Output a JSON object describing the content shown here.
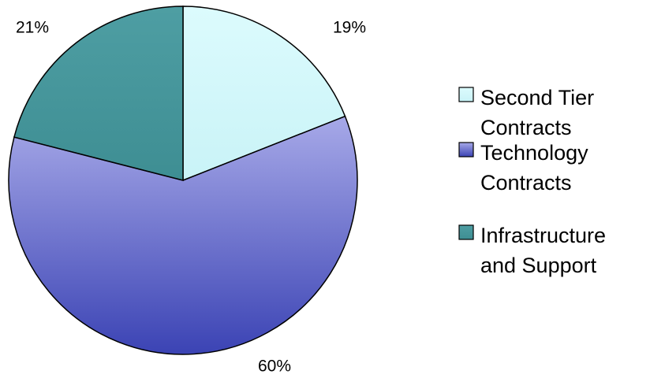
{
  "chart_data": {
    "type": "pie",
    "title": "",
    "slices": [
      {
        "label_lines": [
          "Second Tier",
          "Contracts"
        ],
        "value": 19,
        "label": "19%",
        "color_top": "#DCFBFD",
        "color_bottom": "#C9F3F7"
      },
      {
        "label_lines": [
          "Technology",
          "Contracts"
        ],
        "value": 60,
        "label": "60%",
        "color_top": "#A7A9E8",
        "color_bottom": "#3B43B4"
      },
      {
        "label_lines": [
          "Infrastructure",
          "and Support"
        ],
        "value": 21,
        "label": "21%",
        "color_top": "#4E9EA3",
        "color_bottom": "#3E8E93"
      }
    ],
    "legend_position": "right"
  }
}
